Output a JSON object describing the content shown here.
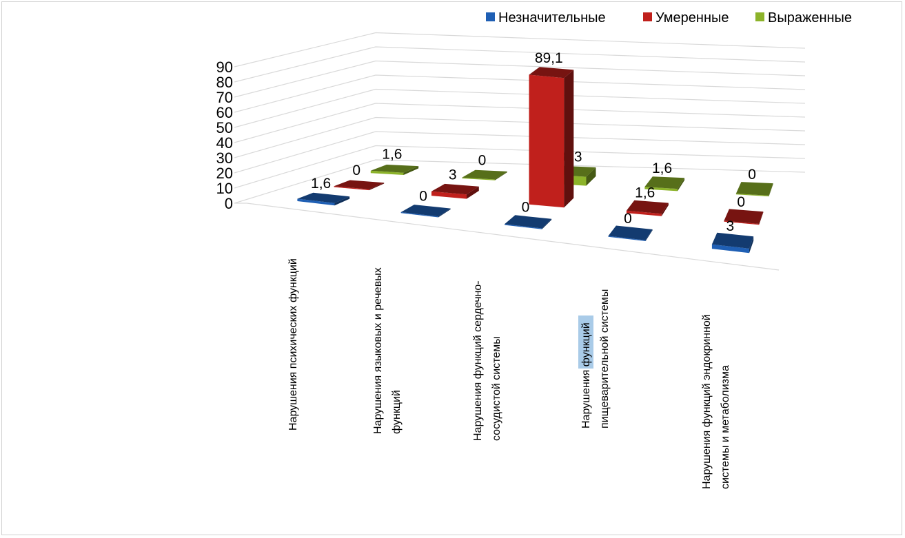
{
  "chart_data": {
    "type": "bar",
    "subtype": "3d-clustered-depth",
    "categories": [
      "Нарушения  психических функций",
      "Нарушения языковых и речевых\nфункций",
      "Нарушения функций сердечно-\nсосудистой системы",
      "Нарушения функций\nпищеварительной системы",
      "Нарушения функций эндокринной\nсистемы и метаболизма"
    ],
    "series": [
      {
        "name": "Незначительные",
        "color": "#1f5fb4",
        "values": [
          1.6,
          0,
          0,
          0,
          3
        ],
        "labels": [
          "1,6",
          "0",
          "0",
          "0",
          "3"
        ]
      },
      {
        "name": "Умеренные",
        "color": "#c0201c",
        "values": [
          0,
          3,
          89.1,
          1.6,
          0
        ],
        "labels": [
          "0",
          "3",
          "89,1",
          "1,6",
          "0"
        ]
      },
      {
        "name": "Выраженные",
        "color": "#8cb32a",
        "values": [
          1.6,
          0,
          6.3,
          1.6,
          0
        ],
        "labels": [
          "1,6",
          "0",
          "6,3",
          "1,6",
          "0"
        ]
      }
    ],
    "yticks": [
      "0",
      "10",
      "20",
      "30",
      "40",
      "50",
      "60",
      "70",
      "80",
      "90"
    ],
    "ylim": [
      0,
      90
    ],
    "grid": true,
    "legend": "top-right",
    "highlighted_word": "функций"
  }
}
